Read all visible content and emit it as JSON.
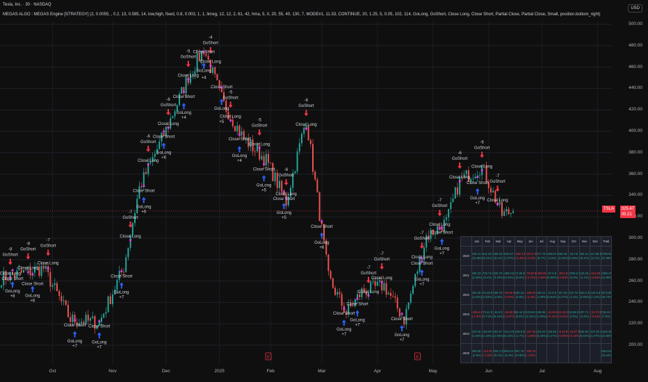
{
  "header": {
    "symbol": "Tesla, Inc. · 30 · NASDAQ",
    "indicator": "MEGAS ALGO : MEGAS Engine [STRATEGY] (2, 0.0055, , 0.2, 13, 0.585, 14, low,high, fixed, 0.8, 0.003, 1, 1, linreg, 12, 12, 2, 61, 42, hma, 5, 0, 20, 55, 40, 130, 7, MODE#1, 11.33, CONTINUE, 20, 1.25, 5, 0.05, 102, 114, GoLong, GoShort, Close Long, Close Short, Partial Close, Partial Close, Small, position.bottom_right)"
  },
  "price_axis": {
    "currency": "USD",
    "ticks": [
      "500.00",
      "480.00",
      "460.00",
      "440.00",
      "420.00",
      "400.00",
      "380.00",
      "360.00",
      "340.00",
      "320.00",
      "300.00",
      "280.00",
      "260.00",
      "240.00",
      "220.00",
      "200.00"
    ]
  },
  "last_price": {
    "symbol": "TSLA",
    "price": "325.47",
    "countdown": "05:21",
    "color": "#f23645"
  },
  "time_axis": [
    {
      "label": "Oct",
      "bar": 23
    },
    {
      "label": "Nov",
      "bar": 50
    },
    {
      "label": "Dec",
      "bar": 74
    },
    {
      "label": "2025",
      "bar": 98
    },
    {
      "label": "Feb",
      "bar": 121
    },
    {
      "label": "Mar",
      "bar": 144
    },
    {
      "label": "Apr",
      "bar": 169
    },
    {
      "label": "May",
      "bar": 194
    },
    {
      "label": "Jun",
      "bar": 219
    },
    {
      "label": "Jul",
      "bar": 243
    },
    {
      "label": "Aug",
      "bar": 268
    }
  ],
  "colors": {
    "up": "#26a69a",
    "down": "#ef5350",
    "short": "#f23645",
    "long": "#2962ff",
    "close": "#e040fb"
  },
  "chart_data": {
    "type": "candlestick",
    "price_waypoints": [
      [
        0,
        263
      ],
      [
        19,
        272
      ],
      [
        31,
        224
      ],
      [
        44,
        221
      ],
      [
        55,
        273
      ],
      [
        62,
        347
      ],
      [
        75,
        406
      ],
      [
        84,
        451
      ],
      [
        91,
        477
      ],
      [
        100,
        425
      ],
      [
        109,
        393
      ],
      [
        119,
        373
      ],
      [
        128,
        334
      ],
      [
        137,
        412
      ],
      [
        147,
        263
      ],
      [
        155,
        230
      ],
      [
        162,
        250
      ],
      [
        172,
        256
      ],
      [
        181,
        224
      ],
      [
        191,
        302
      ],
      [
        200,
        315
      ],
      [
        206,
        354
      ],
      [
        216,
        367
      ],
      [
        225,
        322
      ],
      [
        230,
        325.47
      ]
    ],
    "ylim": [
      190,
      510
    ],
    "signals": [
      {
        "bar": 4,
        "side": "short",
        "qty": "-8",
        "label": "GoShort",
        "close": "Close Long"
      },
      {
        "bar": 12,
        "side": "short",
        "qty": "-8",
        "label": "GoShort",
        "close": "Close Long"
      },
      {
        "bar": 21,
        "side": "short",
        "qty": "-7",
        "label": "GoShort",
        "close": "Close Long"
      },
      {
        "bar": 58,
        "side": "short",
        "qty": "-7",
        "label": "GoShort",
        "close": "Close Long"
      },
      {
        "bar": 66,
        "side": "short",
        "qty": "-6",
        "label": "GoShort",
        "close": "Close Long"
      },
      {
        "bar": 75,
        "side": "short",
        "qty": "-6",
        "label": "GoShort",
        "close": "Close Long"
      },
      {
        "bar": 84,
        "side": "short",
        "qty": "-5",
        "label": "GoShort",
        "close": "Close Long"
      },
      {
        "bar": 94,
        "side": "short",
        "qty": "-4",
        "label": "GoShort",
        "close": "Close Long"
      },
      {
        "bar": 103,
        "side": "short",
        "qty": "-5",
        "label": "GoShort",
        "close": "Close Long"
      },
      {
        "bar": 116,
        "side": "short",
        "qty": "-5",
        "label": "GoShort",
        "close": "Close Long"
      },
      {
        "bar": 128,
        "side": "short",
        "qty": "-6",
        "label": "GoShort",
        "close": "Close Long"
      },
      {
        "bar": 137,
        "side": "short",
        "qty": "-6",
        "label": "GoShort",
        "close": "Close Long"
      },
      {
        "bar": 165,
        "side": "short",
        "qty": "-7",
        "label": "GoShort",
        "close": "Close Long"
      },
      {
        "bar": 171,
        "side": "short",
        "qty": "-7",
        "label": "GoShort",
        "close": "Close Long"
      },
      {
        "bar": 189,
        "side": "short",
        "qty": "-7",
        "label": "GoShort",
        "close": "Close Long"
      },
      {
        "bar": 197,
        "side": "short",
        "qty": "-7",
        "label": "GoShort",
        "close": "Close Long"
      },
      {
        "bar": 206,
        "side": "short",
        "qty": "-6",
        "label": "GoShort",
        "close": "Close Long"
      },
      {
        "bar": 216,
        "side": "short",
        "qty": "-6",
        "label": "GoShort",
        "close": "Close Long"
      },
      {
        "bar": 223,
        "side": "short",
        "qty": "-7",
        "label": "GoShort",
        "close": "Close Long"
      },
      {
        "bar": 5,
        "side": "long",
        "qty": "+8",
        "label": "GoLong",
        "close": "Close Short"
      },
      {
        "bar": 14,
        "side": "long",
        "qty": "+8",
        "label": "GoLong",
        "close": "Close Short"
      },
      {
        "bar": 33,
        "side": "long",
        "qty": "+7",
        "label": "GoLong",
        "close": "Close Short"
      },
      {
        "bar": 44,
        "side": "long",
        "qty": "+7",
        "label": "GoLong",
        "close": "Close Short"
      },
      {
        "bar": 54,
        "side": "long",
        "qty": "+7",
        "label": "GoLong",
        "close": "Close Short"
      },
      {
        "bar": 64,
        "side": "long",
        "qty": "+6",
        "label": "GoLong",
        "close": "Close Short"
      },
      {
        "bar": 73,
        "side": "long",
        "qty": "+6",
        "label": "GoLong",
        "close": "Close Short"
      },
      {
        "bar": 82,
        "side": "long",
        "qty": "+4",
        "label": "GoLong",
        "close": "Close Short"
      },
      {
        "bar": 91,
        "side": "long",
        "qty": "+4",
        "label": "GoLong",
        "close": "Close Short"
      },
      {
        "bar": 99,
        "side": "long",
        "qty": "+5",
        "label": "GoLong",
        "close": "Close Short"
      },
      {
        "bar": 107,
        "side": "long",
        "qty": "+4",
        "label": "GoLong",
        "close": "Close Short"
      },
      {
        "bar": 118,
        "side": "long",
        "qty": "+5",
        "label": "GoLong",
        "close": "Close Short"
      },
      {
        "bar": 127,
        "side": "long",
        "qty": "+5",
        "label": "GoLong",
        "close": "Close Short"
      },
      {
        "bar": 144,
        "side": "long",
        "qty": "+6",
        "label": "GoLong",
        "close": "Close Short"
      },
      {
        "bar": 154,
        "side": "long",
        "qty": "+7",
        "label": "GoLong",
        "close": "Close Short"
      },
      {
        "bar": 160,
        "side": "long",
        "qty": "+7",
        "label": "GoLong",
        "close": "Close Short"
      },
      {
        "bar": 180,
        "side": "long",
        "qty": "+7",
        "label": "GoLong",
        "close": "Close Short"
      },
      {
        "bar": 189,
        "side": "long",
        "qty": "+7",
        "label": "GoLong",
        "close": "Close Short"
      },
      {
        "bar": 198,
        "side": "long",
        "qty": "+7",
        "label": "GoLong",
        "close": "Close Short"
      },
      {
        "bar": 214,
        "side": "long",
        "qty": "+7",
        "label": "GoLong",
        "close": "Close Short"
      }
    ],
    "event_flags": [
      {
        "bar": 120,
        "label": "E"
      },
      {
        "bar": 187,
        "label": "E"
      }
    ]
  },
  "performance_table": {
    "headers": [
      "",
      "Jan",
      "Feb",
      "Mar",
      "Apr",
      "May",
      "Jun",
      "Jul",
      "Aug",
      "Sep",
      "Oct",
      "Nov",
      "Dec",
      "Total"
    ],
    "rows": [
      {
        "year": "2020",
        "cells": [
          [
            "135.41 $",
            "(15.95%)"
          ],
          [
            "641.28 $",
            "(8.41%)"
          ],
          [
            "658.03 $",
            "(8.1%)"
          ],
          [
            "536.67 $",
            "(7.57%)"
          ],
          [
            "-265.3 $",
            "(-2.45%)"
          ],
          [
            "-30.07 $",
            "(-0.3%)"
          ],
          [
            "577.79 $",
            "(6.7%)"
          ],
          [
            "498.03 $",
            "(4.5%)"
          ],
          [
            "365.45 $",
            "(3.55%)"
          ],
          [
            "26.3 $",
            "(0.26%)"
          ],
          [
            "505.61 $",
            "(5.2%)"
          ],
          [
            "411.85 $",
            "(3.7%)"
          ],
          [
            "2789.93 $",
            "(37.58%)"
          ]
        ]
      },
      {
        "year": "2021",
        "cells": [
          [
            "296.23 $",
            "(2.46%)"
          ],
          [
            "702.75 $",
            "(5.4%)"
          ],
          [
            "333.78 $",
            "(3.45%)"
          ],
          [
            "396.8 $",
            "(3.34%)"
          ],
          [
            "74.85 $",
            "(0.5%)"
          ],
          [
            "-79.65 $",
            "(-0.72%)"
          ],
          [
            "-496.05 $",
            "(-4.59%)"
          ],
          [
            "67.8 $",
            "(0.66%)"
          ],
          [
            "-93.5 $",
            "(-0.93%)"
          ],
          [
            "1055.8 $",
            "(9.3%)"
          ],
          [
            "140.25 $",
            "(1.4%)"
          ],
          [
            "-412.85 $",
            "(-3.69%)"
          ],
          [
            "1066.47 $",
            "(10.96%)"
          ]
        ]
      },
      {
        "year": "2022",
        "cells": [
          [
            "460.25 $",
            "(4.53%)"
          ],
          [
            "83.29 $",
            "(0.83%)"
          ],
          [
            "496.75 $",
            "(4.8%)"
          ],
          [
            "-93.96 $",
            "(-0.9%)"
          ],
          [
            "490.23 $",
            "(4.9%)"
          ],
          [
            "-409.84 $",
            "(-4.3%)"
          ],
          [
            "190.24 $",
            "(1.98%)"
          ],
          [
            "61.8 $",
            "(0.62%)"
          ],
          [
            "447.05 $",
            "(4.47%)"
          ],
          [
            "220.75 $",
            "(2.4%)"
          ],
          [
            "250.2 $",
            "(2.55%)"
          ],
          [
            "120.9 $",
            "(1.12%)"
          ],
          [
            "2073.58 $",
            "(36.74%)"
          ]
        ]
      },
      {
        "year": "2023",
        "cells": [
          [
            "-185.9 $",
            "(-1.8%)"
          ],
          [
            "70.42 $",
            "(0.71%)"
          ],
          [
            "36.8 $",
            "(0.41%)"
          ],
          [
            "-26.08 $",
            "(-0.27%)"
          ],
          [
            "55.44 $",
            "(0.5%)"
          ],
          [
            "233.86 $",
            "(2.34%)"
          ],
          [
            "195.96 $",
            "(1.96%)"
          ],
          [
            "-12.05 $",
            "(-0.12%)"
          ],
          [
            "-21.22 $",
            "(-0.21%)"
          ],
          [
            "53.95 $",
            "(0.5%)"
          ],
          [
            "407.71 $",
            "(4.0%)"
          ],
          [
            "-33.73 $",
            "(-0.34%)"
          ],
          [
            "736.23 $",
            "(7.5%)"
          ]
        ]
      },
      {
        "year": "2024",
        "cells": [
          [
            "229.28 $",
            "(2.26%)"
          ],
          [
            "162.95 $",
            "(1.62%)"
          ],
          [
            "284.07 $",
            "(2.85%)"
          ],
          [
            "541.8 $",
            "(5.44%)"
          ],
          [
            "198.8 $",
            "(1.7%)"
          ],
          [
            "-187.96 $",
            "(-1.88%)"
          ],
          [
            "624.02 $",
            "(6.25%)"
          ],
          [
            "226.68 $",
            "(2.27%)"
          ],
          [
            "-6.44 $",
            "(-0.06%)"
          ],
          [
            "-15.97 $",
            "(-0.16%)"
          ],
          [
            "564.82 $",
            "(5.64%)"
          ],
          [
            "107.35 $",
            "(1.07%)"
          ],
          [
            "2446.36 $",
            "(23.88%)"
          ]
        ]
      },
      {
        "year": "2025",
        "cells": [
          [
            "299.56 $",
            "(2.8%)"
          ],
          [
            "-113.35 $",
            "(-1.03%)"
          ],
          [
            "946.1 $",
            "(8.4%)"
          ],
          [
            "660.54 $",
            "(5.4%)"
          ],
          [
            "397.75 $",
            "(3.68%)"
          ],
          [
            "-180.33 $",
            "(-1.6%)"
          ],
          [
            "",
            ""
          ],
          [
            "",
            ""
          ],
          [
            "",
            ""
          ],
          [
            "",
            ""
          ],
          [
            "",
            ""
          ],
          [
            "",
            ""
          ],
          [
            "1554.61 $",
            "(15.24%)"
          ]
        ]
      }
    ]
  }
}
